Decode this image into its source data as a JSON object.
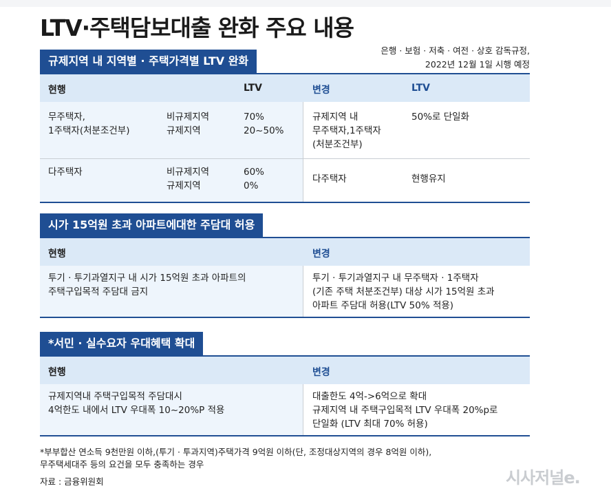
{
  "title": "LTV·주택담보대출 완화 주요 내용",
  "note": [
    "은행 · 보험 · 저축 · 여전 · 상호 감독규정,",
    "2022년 12월 1일 시행 예정"
  ],
  "section1": {
    "header": "규제지역 내 지역별 · 주택가격별 LTV 완화",
    "col_current": "현행",
    "col_ltv": "LTV",
    "col_change": "변경",
    "col_ltv2": "LTV",
    "rows": [
      {
        "type": [
          "무주택자,",
          "1주택자(처분조건부)"
        ],
        "region": [
          "비규제지역",
          "규제지역"
        ],
        "ltv": [
          "70%",
          "20~50%"
        ],
        "change_type": [
          "규제지역 내",
          "무주택자,1주택자",
          "(처분조건부)"
        ],
        "change_ltv": "50%로 단일화"
      },
      {
        "type": [
          "다주택자"
        ],
        "region": [
          "비규제지역",
          "규제지역"
        ],
        "ltv": [
          "60%",
          "0%"
        ],
        "change_type": [
          "다주택자"
        ],
        "change_ltv": "현행유지"
      }
    ]
  },
  "section2": {
    "header": "시가 15억원 초과 아파트에대한 주담대 허용",
    "col_current": "현행",
    "col_change": "변경",
    "current": [
      "투기 · 투기과열지구 내 시가 15억원 초과 아파트의",
      "주택구입목적 주담대 금지"
    ],
    "change": [
      "투기 · 투기과열지구 내 무주택자 · 1주택자",
      "(기존 주택 처분조건부) 대상 시가 15억원 초과",
      "아파트 주담대 허용(LTV 50% 적용)"
    ]
  },
  "section3": {
    "header": "*서민 · 실수요자 우대혜택 확대",
    "col_current": "현행",
    "col_change": "변경",
    "current": [
      "규제지역내 주택구입목적 주담대시",
      "4억한도 내에서 LTV 우대폭 10~20%P 적용"
    ],
    "change": [
      "대출한도 4억->6억으로 확대",
      "규제지역 내 주택구입목적 LTV 우대폭 20%p로",
      "단일화 (LTV 최대 70% 허용)"
    ]
  },
  "footnote": [
    "*부부합산 연소득 9천만원 이하,(투기 · 투과지역)주택가격 9억원 이하(단, 조정대상지역의 경우 8억원 이하),",
    "무주택세대주 등의 요건을 모두 충족하는 경우"
  ],
  "source": "자료 : 금융위원회",
  "logo": "시사저널e."
}
